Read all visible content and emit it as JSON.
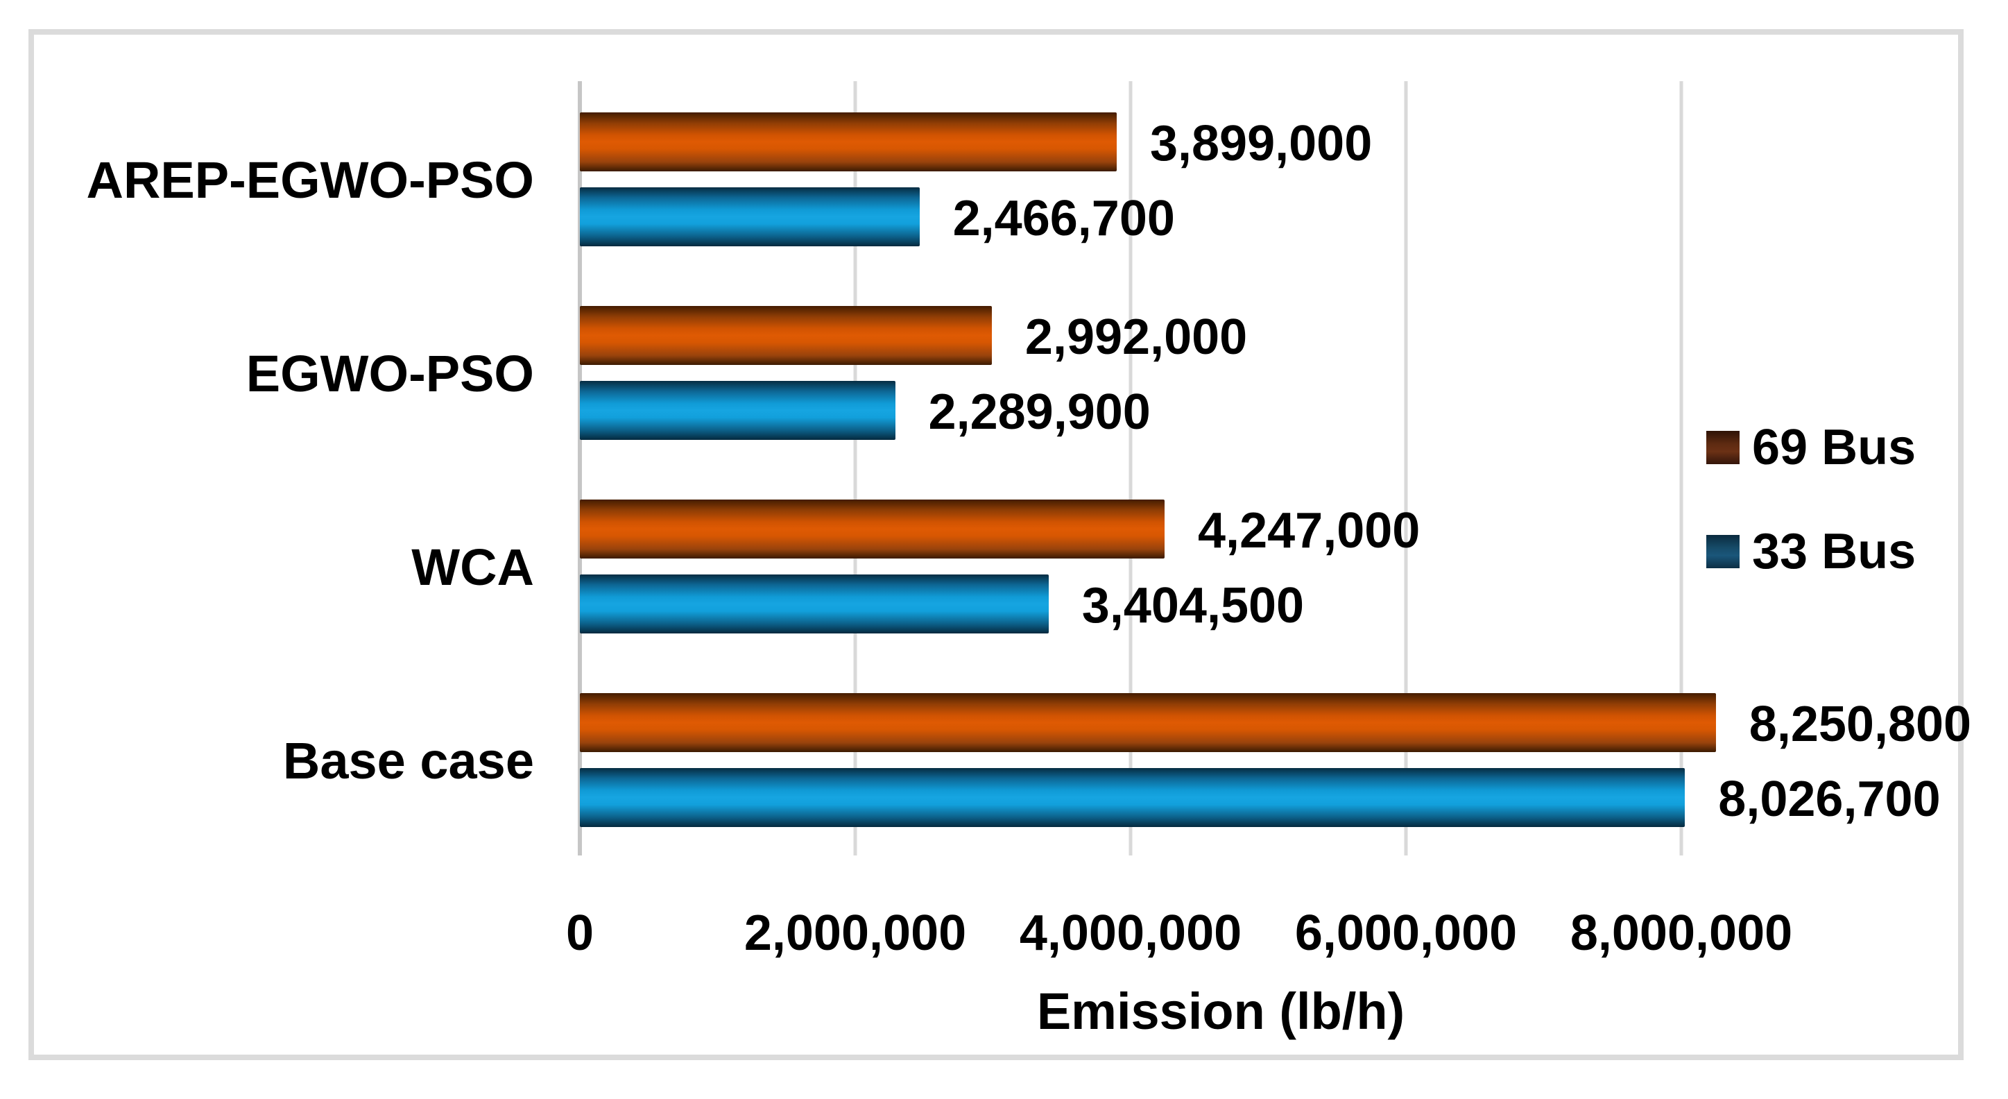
{
  "figure": {
    "background": "#ffffff",
    "border_color": "#dbdbdb",
    "gridline_color": "#d9d9d9",
    "axis_line_color": "#c6c6c6",
    "text_color": "#000000"
  },
  "chart_data": {
    "type": "bar",
    "orientation": "horizontal",
    "title": "",
    "xlabel": "Emission (lb/h)",
    "ylabel": "",
    "categories": [
      "AREP-EGWO-PSO",
      "EGWO-PSO",
      "WCA",
      "Base case"
    ],
    "series": [
      {
        "name": "69 Bus",
        "color": "#c94f02",
        "values": [
          3899000,
          2992000,
          4247000,
          8250800
        ],
        "labels": [
          "3,899,000",
          "2,992,000",
          "4,247,000",
          "8,250,800"
        ]
      },
      {
        "name": "33 Bus",
        "color": "#12a0dc",
        "values": [
          2466700,
          2289900,
          3404500,
          8026700
        ],
        "labels": [
          "2,466,700",
          "2,289,900",
          "3,404,500",
          "8,026,700"
        ]
      }
    ],
    "x_axis": {
      "min": 0,
      "max": 10000000,
      "tick_step": 2000000,
      "ticks": [
        0,
        2000000,
        4000000,
        6000000,
        8000000
      ],
      "tick_labels": [
        "0",
        "2,000,000",
        "4,000,000",
        "6,000,000",
        "8,000,000"
      ]
    },
    "legend": {
      "position": "right",
      "entries": [
        "69 Bus",
        "33 Bus"
      ]
    },
    "gridlines": true,
    "data_labels": "outside-end"
  }
}
